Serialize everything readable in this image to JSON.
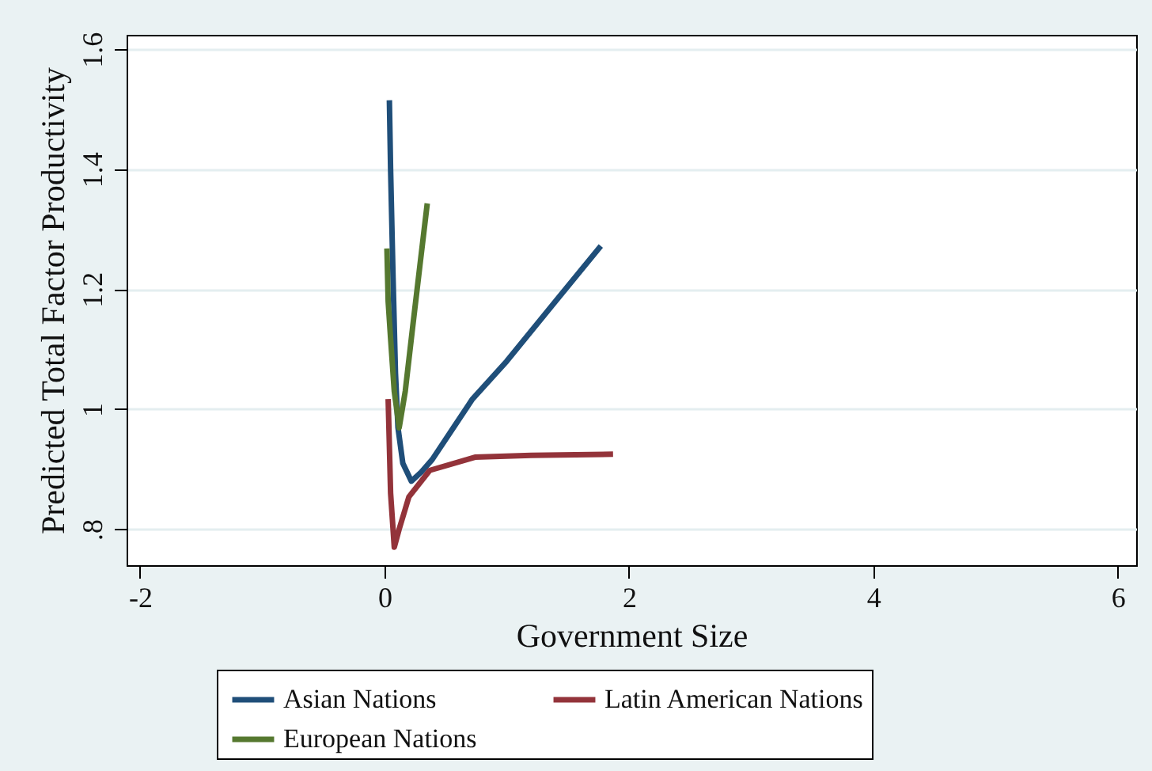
{
  "chart_data": {
    "type": "line",
    "xlabel": "Government Size",
    "ylabel": "Predicted Total Factor Productivity",
    "xlim": [
      -2.11,
      6.15
    ],
    "xticks": [
      -2,
      0,
      2,
      4,
      6
    ],
    "ylim": [
      0.74,
      1.624
    ],
    "yticks": [
      {
        "value": 0.8,
        "label": ".8"
      },
      {
        "value": 1,
        "label": "1"
      },
      1.2,
      1.4,
      1.6
    ],
    "grid": "y",
    "legend": "bottom",
    "line_style": "solid",
    "marker": "none",
    "series": [
      {
        "name": "Asian Nations",
        "color": "#1f4e79",
        "x": [
          0.04,
          0.05,
          0.07,
          0.09,
          0.11,
          0.15,
          0.22,
          0.3,
          0.39,
          0.55,
          0.72,
          1.0,
          1.4,
          1.77
        ],
        "values": [
          1.515,
          1.4,
          1.22,
          1.06,
          0.97,
          0.91,
          0.88,
          0.895,
          0.916,
          0.965,
          1.017,
          1.08,
          1.18,
          1.272
        ]
      },
      {
        "name": "Latin American Nations",
        "color": "#93333a",
        "x": [
          0.03,
          0.05,
          0.08,
          0.12,
          0.2,
          0.37,
          0.74,
          1.2,
          1.87
        ],
        "values": [
          1.017,
          0.86,
          0.77,
          0.8,
          0.854,
          0.898,
          0.92,
          0.923,
          0.925
        ]
      },
      {
        "name": "European Nations",
        "color": "#55782f",
        "x": [
          0.02,
          0.03,
          0.05,
          0.08,
          0.12,
          0.17,
          0.23,
          0.29,
          0.35
        ],
        "values": [
          1.268,
          1.18,
          1.118,
          1.03,
          0.969,
          1.03,
          1.136,
          1.24,
          1.343
        ]
      }
    ]
  }
}
